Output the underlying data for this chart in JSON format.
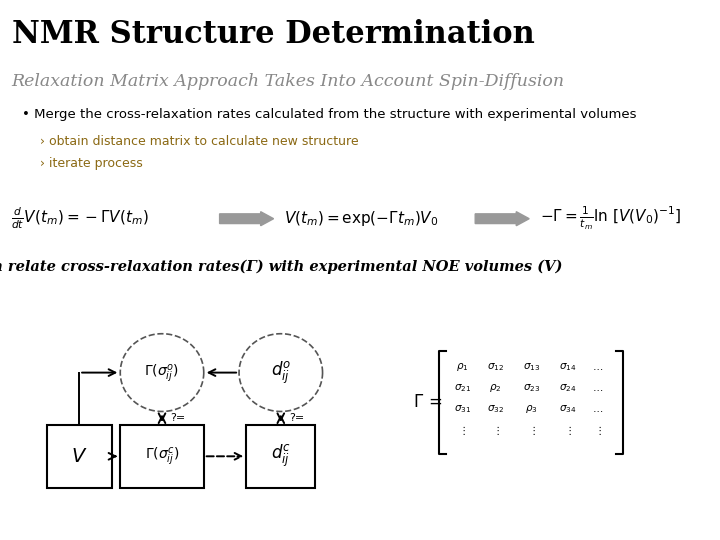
{
  "background_color": "#ffffff",
  "title": "NMR Structure Determination",
  "subtitle": "Relaxation Matrix Approach Takes Into Account Spin-Diffusion",
  "subtitle_color": "#888888",
  "bullet_text": "• Merge the cross-relaxation rates calculated from the structure with experimental volumes",
  "sub_bullet1": "› obtain distance matrix to calculate new structure",
  "sub_bullet2": "› iterate process",
  "sub_bullet_color": "#8B6914",
  "caption": "Can relate cross-relaxation rates(Γ) with experimental NOE volumes (V)",
  "arrow_color": "#888888",
  "box_color": "#000000"
}
